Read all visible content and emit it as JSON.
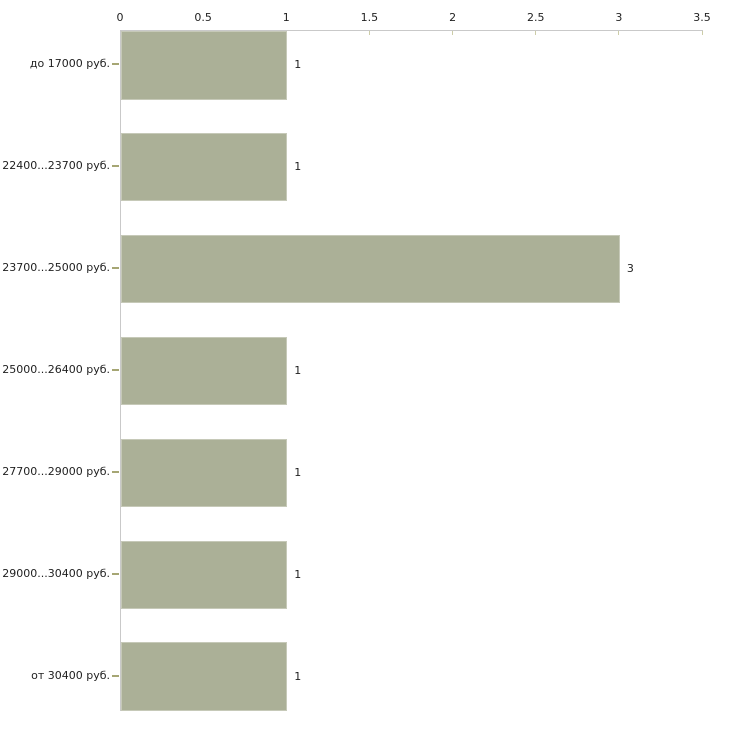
{
  "chart_data": {
    "type": "bar",
    "orientation": "horizontal",
    "title": "",
    "xlabel": "",
    "ylabel": "",
    "categories": [
      "до 17000 руб.",
      "22400...23700 руб.",
      "23700...25000 руб.",
      "25000...26400 руб.",
      "27700...29000 руб.",
      "29000...30400 руб.",
      "от 30400 руб."
    ],
    "values": [
      1,
      1,
      3,
      1,
      1,
      1,
      1
    ],
    "value_labels": [
      "1",
      "1",
      "3",
      "1",
      "1",
      "1",
      "1"
    ],
    "x_ticks": [
      "0",
      "0.5",
      "1",
      "1.5",
      "2",
      "2.5",
      "3",
      "3.5"
    ],
    "x_tick_values": [
      0,
      0.5,
      1,
      1.5,
      2,
      2.5,
      3,
      3.5
    ],
    "xlim": [
      0,
      3.5
    ],
    "grid": false,
    "legend": false,
    "axis_position": "top"
  },
  "colors": {
    "bar_fill": "#abb097",
    "bar_edge": "#c6c9b8",
    "axis_line": "#c9c9c9",
    "category_tick": "#a6a674",
    "axis_tick": "#cdcda8",
    "text": "#1f1f1f",
    "background": "#ffffff"
  }
}
